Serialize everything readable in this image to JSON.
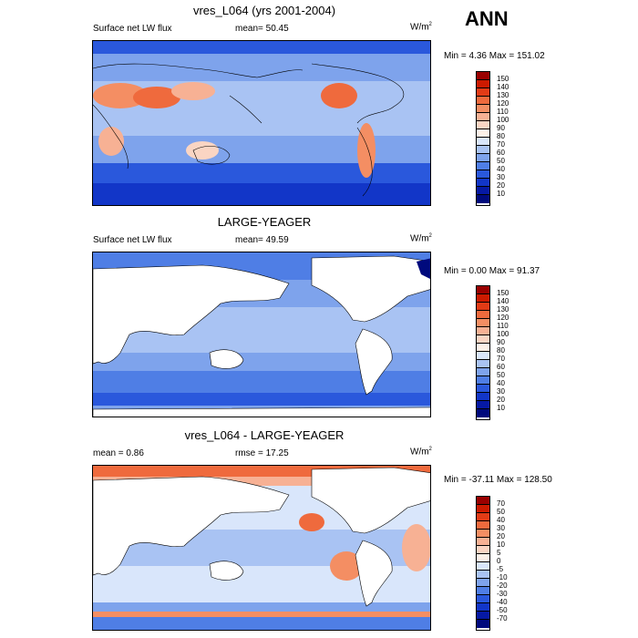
{
  "season": "ANN",
  "panels": [
    {
      "title": "vres_L064 (yrs 2001-2004)",
      "left_label": "Surface net LW flux",
      "center_label": "mean=  50.45",
      "units": "W/m",
      "units_sup": "2",
      "minmax": "Min =   4.36 Max = 151.02",
      "colorbar": {
        "labels": [
          "150",
          "140",
          "130",
          "120",
          "110",
          "100",
          "90",
          "80",
          "70",
          "60",
          "50",
          "40",
          "30",
          "20",
          "10"
        ],
        "colors": [
          "#9a0000",
          "#cc1a00",
          "#e23b16",
          "#ef6a3d",
          "#f48e63",
          "#f7b194",
          "#fad5c3",
          "#fdf1e8",
          "#d9e6fb",
          "#a9c3f3",
          "#7ea3ec",
          "#4f7ee5",
          "#2a58dc",
          "#1236c8",
          "#0619a4",
          "#000a7d"
        ]
      }
    },
    {
      "title": "LARGE-YEAGER",
      "left_label": "Surface net LW flux",
      "center_label": "mean=  49.59",
      "units": "W/m",
      "units_sup": "2",
      "minmax": "Min =   0.00 Max =  91.37",
      "colorbar": {
        "labels": [
          "150",
          "140",
          "130",
          "120",
          "110",
          "100",
          "90",
          "80",
          "70",
          "60",
          "50",
          "40",
          "30",
          "20",
          "10"
        ],
        "colors": [
          "#9a0000",
          "#cc1a00",
          "#e23b16",
          "#ef6a3d",
          "#f48e63",
          "#f7b194",
          "#fad5c3",
          "#fdf1e8",
          "#d9e6fb",
          "#a9c3f3",
          "#7ea3ec",
          "#4f7ee5",
          "#2a58dc",
          "#1236c8",
          "#0619a4",
          "#000a7d"
        ]
      }
    },
    {
      "title": "vres_L064 - LARGE-YEAGER",
      "left_label": "mean =   0.86",
      "center_label": "rmse =  17.25",
      "units": "W/m",
      "units_sup": "2",
      "minmax": "Min = -37.11 Max = 128.50",
      "colorbar": {
        "labels": [
          "70",
          "50",
          "40",
          "30",
          "20",
          "10",
          "5",
          "0",
          "-5",
          "-10",
          "-20",
          "-30",
          "-40",
          "-50",
          "-70"
        ],
        "colors": [
          "#9a0000",
          "#cc1a00",
          "#e23b16",
          "#ef6a3d",
          "#f48e63",
          "#f7b194",
          "#fad5c3",
          "#fdf1e8",
          "#d9e6fb",
          "#a9c3f3",
          "#7ea3ec",
          "#4f7ee5",
          "#2a58dc",
          "#1236c8",
          "#0619a4",
          "#000a7d"
        ]
      }
    }
  ]
}
